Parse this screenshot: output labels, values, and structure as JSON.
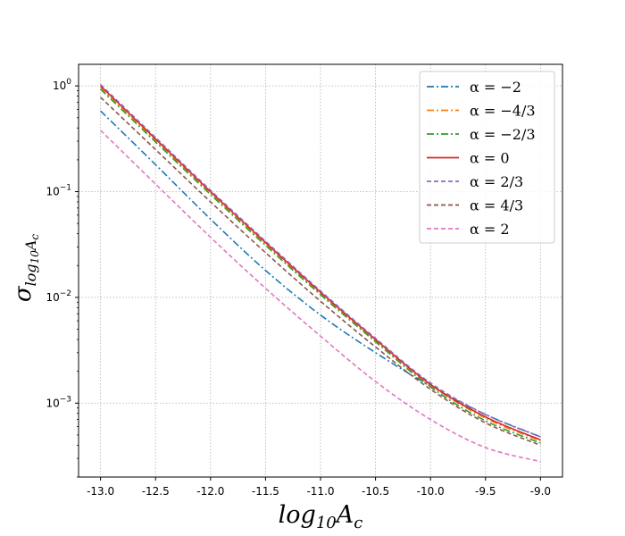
{
  "chart_data": {
    "type": "line",
    "title": "",
    "xlabel": "log10Ac",
    "ylabel": "σlog10Ac",
    "xlim": [
      -13.2,
      -8.8
    ],
    "ylim": [
      0.0002,
      1.6
    ],
    "yscale": "log",
    "grid": true,
    "legend_position": "top-right",
    "x_ticks": [
      -13.0,
      -12.5,
      -12.0,
      -11.5,
      -11.0,
      -10.5,
      -10.0,
      -9.5,
      -9.0
    ],
    "x_tick_labels": [
      "-13.0",
      "-12.5",
      "-12.0",
      "-11.5",
      "-11.0",
      "-10.5",
      "-10.0",
      "-9.5",
      "-9.0"
    ],
    "y_ticks": [
      {
        "value": 1,
        "base": "10",
        "exp": "0"
      },
      {
        "value": 0.1,
        "base": "10",
        "exp": "−1"
      },
      {
        "value": 0.01,
        "base": "10",
        "exp": "−2"
      },
      {
        "value": 0.001,
        "base": "10",
        "exp": "−3"
      }
    ],
    "x": [
      -13.0,
      -12.5,
      -12.0,
      -11.5,
      -11.0,
      -10.5,
      -10.0,
      -9.5,
      -9.0
    ],
    "series": [
      {
        "name": "α = −2",
        "color": "#1f77b4",
        "dash": "8 3 2 3",
        "values": [
          0.58,
          0.18,
          0.055,
          0.018,
          0.0068,
          0.003,
          0.00145,
          0.00078,
          0.00048
        ]
      },
      {
        "name": "α = −4/3",
        "color": "#ff7f0e",
        "dash": "8 3 2 3",
        "values": [
          0.96,
          0.305,
          0.097,
          0.032,
          0.0109,
          0.0039,
          0.00148,
          0.00072,
          0.00044
        ]
      },
      {
        "name": "α = −2/3",
        "color": "#2ca02c",
        "dash": "8 3 2 3",
        "values": [
          0.93,
          0.295,
          0.094,
          0.031,
          0.0106,
          0.0038,
          0.00142,
          0.00068,
          0.00042
        ]
      },
      {
        "name": "α = 0",
        "color": "#d62728",
        "dash": "",
        "values": [
          1.0,
          0.315,
          0.1,
          0.033,
          0.0112,
          0.004,
          0.0015,
          0.00074,
          0.00045
        ]
      },
      {
        "name": "α = 2/3",
        "color": "#9467bd",
        "dash": "5 3",
        "values": [
          1.03,
          0.325,
          0.103,
          0.034,
          0.0115,
          0.0041,
          0.00155,
          0.00078,
          0.00048
        ]
      },
      {
        "name": "α = 4/3",
        "color": "#8c564b",
        "dash": "5 3",
        "values": [
          0.78,
          0.25,
          0.08,
          0.0265,
          0.0092,
          0.0034,
          0.00135,
          0.00065,
          0.0004
        ]
      },
      {
        "name": "α = 2",
        "color": "#e377c2",
        "dash": "5 3",
        "values": [
          0.38,
          0.118,
          0.037,
          0.0122,
          0.0043,
          0.0016,
          0.0007,
          0.00038,
          0.00028
        ]
      }
    ]
  }
}
